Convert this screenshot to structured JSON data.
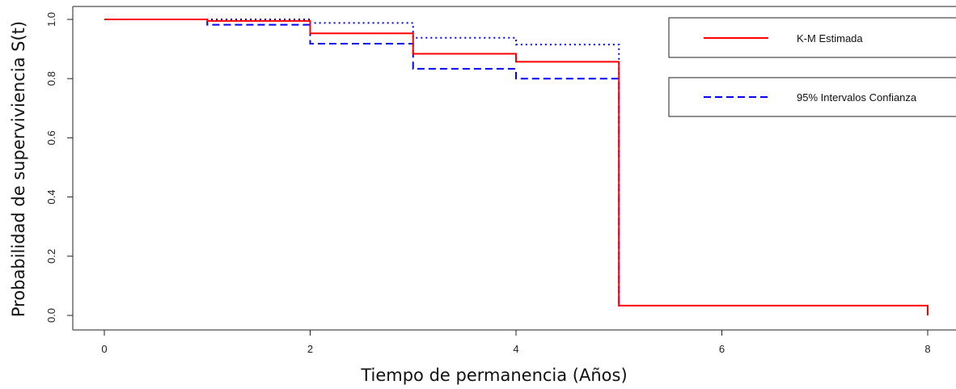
{
  "chart_data": {
    "type": "line",
    "xlabel": "Tiempo de permanencia (Años)",
    "ylabel": "Probabilidad de superviviencia S(t)",
    "xlim": [
      0,
      8
    ],
    "ylim": [
      0,
      1
    ],
    "xticks": [
      "0",
      "2",
      "4",
      "6",
      "8"
    ],
    "yticks": [
      "0.0",
      "0.2",
      "0.4",
      "0.6",
      "0.8",
      "1.0"
    ],
    "grid": false,
    "legend_position": "top-right",
    "series": [
      {
        "name": "K-M Estimada",
        "style": "solid",
        "color": "#ff0000",
        "x": [
          0,
          1,
          2,
          3,
          4,
          5,
          8
        ],
        "y": [
          1.0,
          0.995,
          0.953,
          0.884,
          0.857,
          0.033,
          0.0
        ]
      },
      {
        "name": "95% Intervalos Confianza",
        "style": "dashed",
        "color": "#0000ff",
        "x": [
          0,
          1,
          2,
          3,
          4,
          5
        ],
        "y": [
          1.0,
          0.982,
          0.918,
          0.833,
          0.8,
          0.027
        ]
      },
      {
        "name": "",
        "style": "dotted",
        "color": "#0000ff",
        "x": [
          0,
          1,
          2,
          3,
          4,
          5
        ],
        "y": [
          1.0,
          1.0,
          0.988,
          0.938,
          0.915,
          0.03
        ]
      }
    ]
  }
}
